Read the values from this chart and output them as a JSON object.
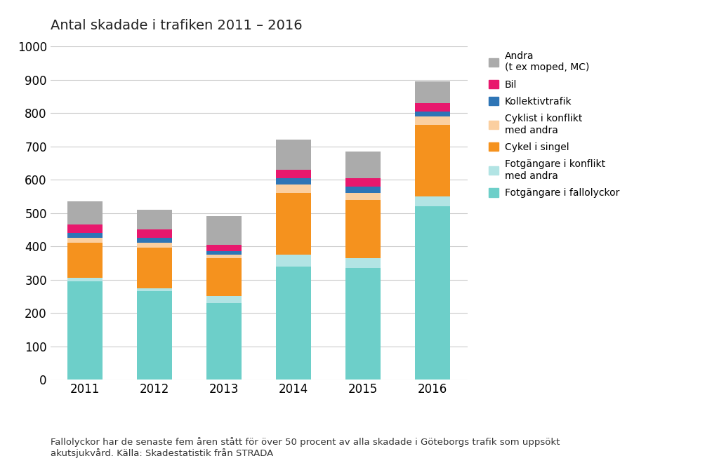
{
  "years": [
    "2011",
    "2012",
    "2013",
    "2014",
    "2015",
    "2016"
  ],
  "series": [
    {
      "label": "Fotgängare i fallolyckor",
      "color": "#6DCFC9",
      "values": [
        295,
        265,
        230,
        340,
        335,
        520
      ]
    },
    {
      "label": "Fotgängare i konflikt\nmed andra",
      "color": "#B2E4E4",
      "values": [
        10,
        10,
        20,
        35,
        30,
        30
      ]
    },
    {
      "label": "Cykel i singel",
      "color": "#F5921E",
      "values": [
        105,
        120,
        115,
        185,
        175,
        215
      ]
    },
    {
      "label": "Cyklist i konflikt\nmed andra",
      "color": "#FBCFA0",
      "values": [
        15,
        15,
        10,
        25,
        20,
        25
      ]
    },
    {
      "label": "Kollektivtrafik",
      "color": "#2E75B6",
      "values": [
        15,
        15,
        10,
        20,
        20,
        15
      ]
    },
    {
      "label": "Bil",
      "color": "#E8186D",
      "values": [
        25,
        25,
        20,
        25,
        25,
        25
      ]
    },
    {
      "label": "Andra\n(t ex moped, MC)",
      "color": "#ABABAB",
      "values": [
        70,
        60,
        85,
        90,
        80,
        65
      ]
    }
  ],
  "title": "Antal skadade i trafiken 2011 – 2016",
  "ylim": [
    0,
    1000
  ],
  "yticks": [
    0,
    100,
    200,
    300,
    400,
    500,
    600,
    700,
    800,
    900,
    1000
  ],
  "footnote": "Fallolyckor har de senaste fem åren stått för över 50 procent av alla skadade i Göteborgs trafik som uppsökt\nakutsjukvård. Källa: Skadestatistik från STRADA",
  "background_color": "#FFFFFF",
  "bar_width": 0.5,
  "title_fontsize": 14,
  "tick_fontsize": 12,
  "legend_fontsize": 10,
  "footnote_fontsize": 9.5
}
